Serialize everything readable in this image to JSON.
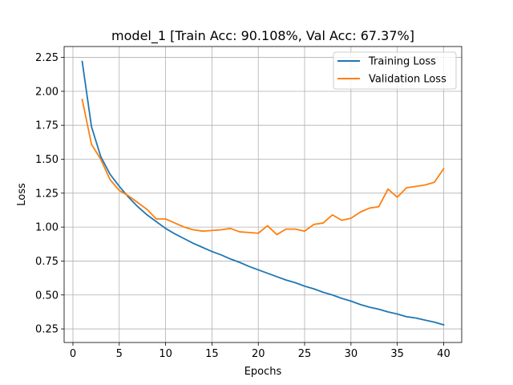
{
  "chart_data": {
    "type": "line",
    "title": "model_1 [Train Acc: 90.108%, Val Acc: 67.37%]",
    "xlabel": "Epochs",
    "ylabel": "Loss",
    "xlim": [
      -0.95,
      41.95
    ],
    "ylim": [
      0.15,
      2.33
    ],
    "xticks": [
      0,
      5,
      10,
      15,
      20,
      25,
      30,
      35,
      40
    ],
    "xtick_labels": [
      "0",
      "5",
      "10",
      "15",
      "20",
      "25",
      "30",
      "35",
      "40"
    ],
    "yticks": [
      0.25,
      0.5,
      0.75,
      1.0,
      1.25,
      1.5,
      1.75,
      2.0,
      2.25
    ],
    "ytick_labels": [
      "0.25",
      "0.50",
      "0.75",
      "1.00",
      "1.25",
      "1.50",
      "1.75",
      "2.00",
      "2.25"
    ],
    "grid": true,
    "legend_position": "top-right",
    "x": [
      1,
      2,
      3,
      4,
      5,
      6,
      7,
      8,
      9,
      10,
      11,
      12,
      13,
      14,
      15,
      16,
      17,
      18,
      19,
      20,
      21,
      22,
      23,
      24,
      25,
      26,
      27,
      28,
      29,
      30,
      31,
      32,
      33,
      34,
      35,
      36,
      37,
      38,
      39,
      40
    ],
    "series": [
      {
        "name": "Training Loss",
        "color": "#1f77b4",
        "values": [
          2.22,
          1.74,
          1.52,
          1.39,
          1.3,
          1.22,
          1.15,
          1.09,
          1.04,
          0.99,
          0.95,
          0.915,
          0.88,
          0.85,
          0.82,
          0.795,
          0.765,
          0.74,
          0.71,
          0.685,
          0.66,
          0.635,
          0.61,
          0.59,
          0.565,
          0.545,
          0.52,
          0.5,
          0.475,
          0.455,
          0.43,
          0.41,
          0.395,
          0.375,
          0.36,
          0.34,
          0.33,
          0.315,
          0.3,
          0.28
        ]
      },
      {
        "name": "Validation Loss",
        "color": "#ff7f0e",
        "values": [
          1.94,
          1.61,
          1.5,
          1.35,
          1.27,
          1.23,
          1.18,
          1.13,
          1.06,
          1.06,
          1.03,
          1.0,
          0.98,
          0.97,
          0.975,
          0.98,
          0.99,
          0.965,
          0.96,
          0.955,
          1.01,
          0.945,
          0.985,
          0.985,
          0.97,
          1.02,
          1.03,
          1.09,
          1.05,
          1.065,
          1.11,
          1.14,
          1.15,
          1.28,
          1.22,
          1.29,
          1.3,
          1.31,
          1.33,
          1.43
        ]
      }
    ]
  }
}
